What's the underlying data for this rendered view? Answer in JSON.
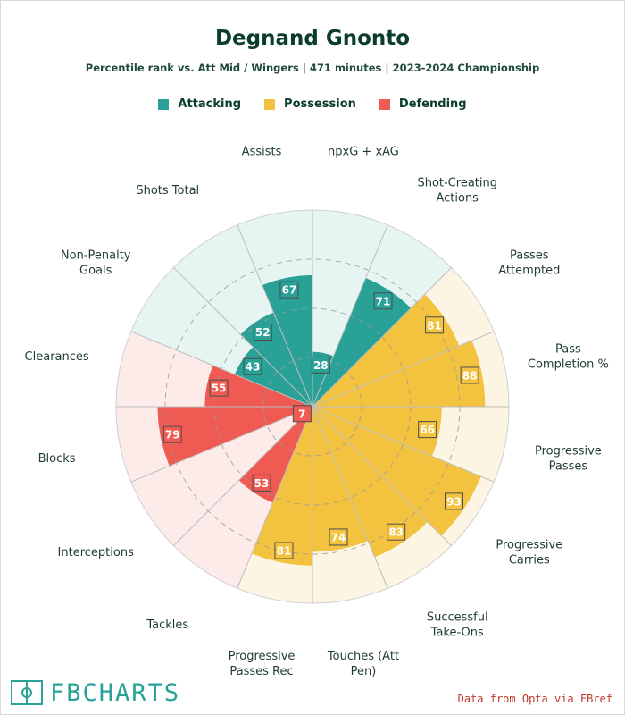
{
  "page": {
    "title": "Degnand Gnonto",
    "subtitle": "Percentile rank vs. Att Mid / Wingers | 471 minutes | 2023-2024 Championship",
    "brand": "FBCHARTS",
    "source": "Data from Opta via FBref"
  },
  "legend": [
    {
      "label": "Attacking",
      "color": "#2aa197"
    },
    {
      "label": "Possession",
      "color": "#f3c23f"
    },
    {
      "label": "Defending",
      "color": "#ef5b52"
    }
  ],
  "colors": {
    "attack_bg": "#e6f5f2",
    "possession_bg": "#fdf5e3",
    "defending_bg": "#fdebea",
    "grid_line": "#bdbdbd",
    "label_text": "#1f3b33"
  },
  "chart_data": {
    "type": "radar",
    "title": "Degnand Gnonto",
    "subtitle": "Percentile rank vs. Att Mid / Wingers | 471 minutes | 2023-2024 Championship",
    "range": [
      0,
      100
    ],
    "rings": [
      25,
      50,
      75,
      100
    ],
    "categories": [
      {
        "label": "npxG + xAG",
        "value": 28,
        "group": "Attacking"
      },
      {
        "label": "Shot-Creating Actions",
        "value": 71,
        "group": "Attacking"
      },
      {
        "label": "Passes Attempted",
        "value": 81,
        "group": "Possession"
      },
      {
        "label": "Pass Completion %",
        "value": 88,
        "group": "Possession"
      },
      {
        "label": "Progressive Passes",
        "value": 66,
        "group": "Possession"
      },
      {
        "label": "Progressive Carries",
        "value": 93,
        "group": "Possession"
      },
      {
        "label": "Successful Take-Ons",
        "value": 83,
        "group": "Possession"
      },
      {
        "label": "Touches (Att Pen)",
        "value": 74,
        "group": "Possession"
      },
      {
        "label": "Progressive Passes Rec",
        "value": 81,
        "group": "Possession"
      },
      {
        "label": "Tackles",
        "value": 53,
        "group": "Defending"
      },
      {
        "label": "Interceptions",
        "value": 7,
        "group": "Defending"
      },
      {
        "label": "Blocks",
        "value": 79,
        "group": "Defending"
      },
      {
        "label": "Clearances",
        "value": 55,
        "group": "Defending"
      },
      {
        "label": "Non-Penalty Goals",
        "value": 43,
        "group": "Attacking"
      },
      {
        "label": "Shots Total",
        "value": 52,
        "group": "Attacking"
      },
      {
        "label": "Assists",
        "value": 67,
        "group": "Attacking"
      }
    ],
    "label_lines": [
      [
        "npxG + xAG"
      ],
      [
        "Shot-Creating",
        "Actions"
      ],
      [
        "Passes",
        "Attempted"
      ],
      [
        "Pass",
        "Completion %"
      ],
      [
        "Progressive",
        "Passes"
      ],
      [
        "Progressive",
        "Carries"
      ],
      [
        "Successful",
        "Take-Ons"
      ],
      [
        "Touches (Att",
        "Pen)"
      ],
      [
        "Progressive",
        "Passes Rec"
      ],
      [
        "Tackles"
      ],
      [
        "Interceptions"
      ],
      [
        "Blocks"
      ],
      [
        "Clearances"
      ],
      [
        "Non-Penalty",
        "Goals"
      ],
      [
        "Shots Total"
      ],
      [
        "Assists"
      ]
    ]
  }
}
